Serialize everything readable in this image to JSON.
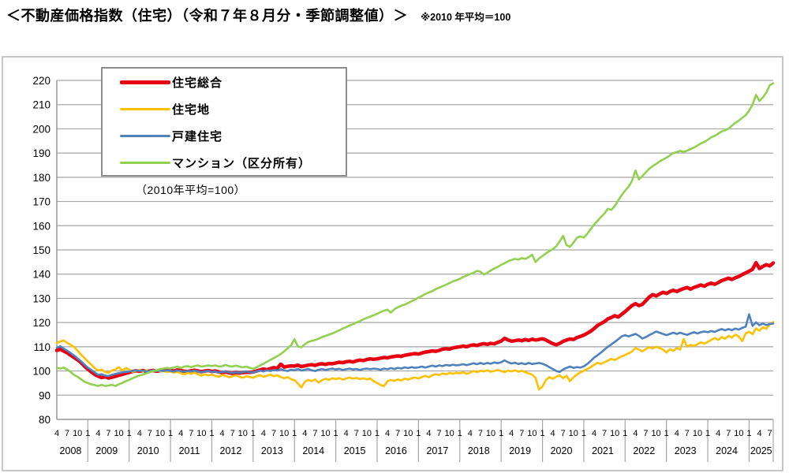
{
  "chart_data": {
    "type": "line",
    "title": "＜不動産価格指数（住宅）（令和７年８月分・季節調整値）＞",
    "subtitle": "※2010 年平均＝100",
    "inner_note": "（2010年平均=100）",
    "frequency": "monthly",
    "x_start": "2008-04",
    "x_end": "2025-08",
    "ylim": [
      80,
      220
    ],
    "y_step": 10,
    "grid": "horizontal-only",
    "legend_position": "top-left-inside",
    "quarter_tick_months": [
      1,
      4,
      7,
      10
    ],
    "colors": {
      "grid": "#a6a6a6",
      "axis": "#808080",
      "frame": "#b3b3b3",
      "text": "#000000"
    },
    "years": [
      "2008",
      "2009",
      "2010",
      "2011",
      "2012",
      "2013",
      "2014",
      "2015",
      "2016",
      "2017",
      "2018",
      "2019",
      "2020",
      "2021",
      "2022",
      "2023",
      "2024",
      "2025"
    ],
    "series": [
      {
        "key": "housing-total",
        "name": "住宅総合",
        "color": "#e60012",
        "line_width": 4.5,
        "values_by_year": {
          "2008": [
            108.5,
            109.0,
            108.2,
            107.5,
            106.5,
            105.6,
            104.6,
            103.5,
            102.0
          ],
          "2009": [
            100.8,
            99.6,
            98.6,
            97.8,
            97.3,
            97.6,
            97.1,
            97.4,
            97.8,
            98.2,
            98.6,
            99.0
          ],
          "2010": [
            99.4,
            99.8,
            100.1,
            99.9,
            100.2,
            99.8,
            100.0,
            100.2,
            99.9,
            100.1,
            100.3,
            100.4
          ],
          "2011": [
            100.2,
            100.0,
            100.4,
            100.2,
            99.9,
            99.8,
            100.1,
            100.3,
            100.0,
            99.7,
            100.0,
            100.2
          ],
          "2012": [
            99.8,
            100.0,
            99.6,
            99.3,
            99.6,
            99.2,
            99.0,
            99.4,
            99.1,
            99.3,
            99.5,
            99.4
          ],
          "2013": [
            99.6,
            100.0,
            100.4,
            100.8,
            100.5,
            101.0,
            101.4,
            101.1,
            102.8,
            101.6,
            101.9,
            102.1
          ],
          "2014": [
            102.0,
            102.4,
            101.8,
            102.1,
            102.4,
            102.6,
            102.3,
            102.8,
            103.0,
            102.7,
            103.1,
            103.0
          ],
          "2015": [
            103.3,
            103.6,
            103.4,
            103.8,
            104.0,
            103.7,
            104.2,
            104.5,
            104.3,
            104.7,
            105.0,
            104.8
          ],
          "2016": [
            105.0,
            105.3,
            105.6,
            105.4,
            105.8,
            106.0,
            106.2,
            106.0,
            106.5,
            106.7,
            107.0,
            107.2
          ],
          "2017": [
            107.0,
            107.4,
            107.8,
            108.0,
            108.3,
            108.1,
            108.5,
            109.0,
            109.2,
            109.0,
            109.5,
            109.8
          ],
          "2018": [
            110.0,
            110.3,
            110.0,
            110.5,
            110.8,
            110.5,
            111.0,
            111.3,
            111.0,
            111.4,
            111.2,
            111.8
          ],
          "2019": [
            112.3,
            113.5,
            112.8,
            112.3,
            112.5,
            112.8,
            112.5,
            113.0,
            112.6,
            113.1,
            112.8,
            113.0
          ],
          "2020": [
            113.3,
            112.8,
            112.0,
            111.3,
            110.8,
            111.4,
            112.2,
            112.8,
            113.2,
            113.0,
            113.8,
            114.3
          ],
          "2021": [
            114.8,
            115.6,
            116.4,
            117.5,
            118.8,
            119.6,
            120.4,
            121.5,
            122.1,
            122.8,
            122.3,
            123.4
          ],
          "2022": [
            124.5,
            125.8,
            127.0,
            127.8,
            127.0,
            127.5,
            129.0,
            130.5,
            131.5,
            131.0,
            131.8,
            132.5
          ],
          "2023": [
            132.0,
            132.8,
            133.3,
            132.8,
            133.5,
            134.0,
            134.5,
            133.8,
            134.5,
            135.0,
            135.5,
            135.0
          ],
          "2024": [
            135.8,
            136.3,
            135.8,
            136.5,
            137.3,
            137.8,
            138.3,
            137.8,
            138.5,
            139.0,
            139.8,
            140.5
          ],
          "2025": [
            141.2,
            142.0,
            144.7,
            142.3,
            143.2,
            143.9,
            143.4,
            144.6
          ]
        }
      },
      {
        "key": "residential-land",
        "name": "住宅地",
        "color": "#ffc000",
        "line_width": 2.6,
        "values_by_year": {
          "2008": [
            111.5,
            112.2,
            112.6,
            111.6,
            110.8,
            110.0,
            108.4,
            106.8,
            105.4
          ],
          "2009": [
            104.0,
            102.6,
            101.2,
            100.2,
            100.6,
            99.6,
            99.2,
            100.2,
            100.6,
            101.6,
            100.2,
            101.2
          ],
          "2010": [
            100.6,
            99.6,
            100.1,
            100.4,
            99.8,
            100.2,
            99.7,
            100.0,
            100.3,
            99.8,
            100.0,
            99.6
          ],
          "2011": [
            99.8,
            99.3,
            99.7,
            99.0,
            98.6,
            99.2,
            98.8,
            99.3,
            98.6,
            98.1,
            98.6,
            98.2
          ],
          "2012": [
            98.5,
            98.0,
            97.6,
            98.3,
            98.0,
            97.4,
            97.8,
            98.2,
            97.6,
            97.2,
            97.8,
            97.5
          ],
          "2013": [
            97.2,
            97.8,
            98.3,
            97.6,
            98.0,
            98.5,
            97.8,
            98.2,
            97.5,
            97.0,
            97.5,
            96.6
          ],
          "2014": [
            96.2,
            94.8,
            93.2,
            95.5,
            96.3,
            95.8,
            96.5,
            95.2,
            96.2,
            96.8,
            96.3,
            97.0
          ],
          "2015": [
            96.6,
            97.1,
            96.4,
            96.9,
            97.3,
            96.8,
            97.2,
            96.6,
            97.0,
            96.5,
            96.9,
            95.8
          ],
          "2016": [
            95.0,
            94.2,
            93.7,
            95.8,
            96.3,
            95.9,
            96.5,
            96.1,
            96.8,
            96.4,
            97.0,
            97.3
          ],
          "2017": [
            96.9,
            97.5,
            98.0,
            97.4,
            98.2,
            98.7,
            98.3,
            99.0,
            98.6,
            99.2,
            98.8,
            99.3
          ],
          "2018": [
            99.0,
            99.5,
            98.8,
            99.3,
            100.0,
            99.5,
            100.1,
            99.8,
            100.3,
            99.7,
            100.0,
            100.4
          ],
          "2019": [
            100.0,
            99.5,
            100.2,
            99.8,
            100.3,
            99.7,
            100.1,
            99.5,
            99.0,
            98.5,
            97.2,
            92.3
          ],
          "2020": [
            93.6,
            96.2,
            97.5,
            96.8,
            97.6,
            98.2,
            97.0,
            98.0,
            95.8,
            97.4,
            98.5,
            99.4
          ],
          "2021": [
            100.1,
            100.8,
            101.6,
            102.5,
            103.4,
            102.9,
            103.6,
            104.3,
            105.0,
            104.5,
            105.3,
            106.0
          ],
          "2022": [
            106.6,
            107.3,
            108.0,
            109.5,
            108.8,
            108.1,
            109.0,
            109.8,
            109.3,
            110.0,
            109.5,
            108.8
          ],
          "2023": [
            107.6,
            109.0,
            108.3,
            109.5,
            108.8,
            113.2,
            110.0,
            110.8,
            110.3,
            111.0,
            111.8,
            111.3
          ],
          "2024": [
            112.0,
            112.8,
            113.6,
            112.8,
            114.0,
            113.3,
            114.5,
            113.8,
            115.0,
            114.3,
            112.3,
            115.5
          ],
          "2025": [
            116.2,
            115.2,
            117.6,
            116.6,
            118.1,
            117.4,
            119.2,
            120.2
          ]
        }
      },
      {
        "key": "detached-house",
        "name": "戸建住宅",
        "color": "#4f81bd",
        "line_width": 2.6,
        "values_by_year": {
          "2008": [
            109.6,
            110.2,
            109.2,
            108.4,
            107.4,
            106.4,
            105.2,
            104.0,
            102.6
          ],
          "2009": [
            101.4,
            100.4,
            99.4,
            98.4,
            98.7,
            98.1,
            97.9,
            98.4,
            98.8,
            99.1,
            99.4,
            99.6
          ],
          "2010": [
            99.8,
            100.0,
            100.3,
            100.0,
            100.2,
            99.8,
            100.0,
            100.3,
            99.9,
            100.2,
            100.0,
            100.3
          ],
          "2011": [
            100.0,
            99.8,
            100.2,
            100.0,
            99.7,
            100.0,
            99.8,
            100.2,
            99.8,
            99.5,
            99.8,
            100.0
          ],
          "2012": [
            99.6,
            99.8,
            99.4,
            99.6,
            99.8,
            99.4,
            99.1,
            99.5,
            99.2,
            99.5,
            99.8,
            99.5
          ],
          "2013": [
            99.4,
            99.8,
            100.2,
            99.8,
            100.3,
            100.0,
            100.4,
            100.2,
            100.7,
            100.3,
            100.0,
            100.5
          ],
          "2014": [
            100.3,
            100.8,
            100.2,
            100.5,
            100.8,
            100.3,
            100.0,
            100.5,
            100.8,
            100.4,
            100.7,
            101.0
          ],
          "2015": [
            100.6,
            100.9,
            100.4,
            100.7,
            101.0,
            100.6,
            100.8,
            100.4,
            100.8,
            101.0,
            100.7,
            101.0
          ],
          "2016": [
            100.8,
            100.5,
            101.0,
            100.7,
            101.2,
            100.8,
            101.3,
            101.0,
            101.5,
            101.2,
            101.6,
            101.3
          ],
          "2017": [
            101.5,
            101.8,
            101.4,
            101.8,
            102.2,
            101.8,
            102.3,
            102.0,
            102.5,
            102.2,
            102.6,
            102.3
          ],
          "2018": [
            102.5,
            102.8,
            102.4,
            102.8,
            103.2,
            102.8,
            103.3,
            102.9,
            103.3,
            103.0,
            103.5,
            103.2
          ],
          "2019": [
            103.6,
            104.4,
            103.6,
            103.1,
            103.4,
            102.9,
            103.2,
            102.8,
            103.3,
            102.9,
            103.1,
            103.3
          ],
          "2020": [
            103.0,
            102.4,
            101.6,
            100.8,
            100.0,
            99.6,
            100.6,
            101.3,
            101.8,
            101.3,
            101.6,
            101.4
          ],
          "2021": [
            101.9,
            102.9,
            104.1,
            105.5,
            106.5,
            107.6,
            108.8,
            110.0,
            111.0,
            112.0,
            113.1,
            114.3
          ],
          "2022": [
            114.8,
            114.3,
            114.8,
            115.3,
            114.5,
            113.4,
            114.0,
            114.8,
            115.5,
            116.3,
            115.8,
            115.3
          ],
          "2023": [
            114.8,
            115.3,
            115.8,
            115.3,
            115.8,
            115.3,
            114.9,
            115.5,
            116.0,
            115.5,
            116.0,
            116.3
          ],
          "2024": [
            116.0,
            116.5,
            116.1,
            116.8,
            117.3,
            116.8,
            117.3,
            116.9,
            117.5,
            117.1,
            117.8,
            118.3
          ],
          "2025": [
            123.4,
            118.6,
            120.1,
            118.9,
            119.6,
            118.9,
            119.4,
            119.6
          ]
        }
      },
      {
        "key": "condominium",
        "name": "マンション（区分所有）",
        "color": "#92d050",
        "line_width": 2.6,
        "values_by_year": {
          "2008": [
            101.3,
            101.0,
            101.4,
            100.6,
            99.6,
            98.4,
            97.6,
            96.6,
            95.6
          ],
          "2009": [
            95.0,
            94.5,
            94.2,
            93.8,
            94.3,
            93.8,
            94.0,
            94.3,
            93.8,
            94.5,
            95.0,
            95.8
          ],
          "2010": [
            96.3,
            97.0,
            97.6,
            98.1,
            98.5,
            99.0,
            99.5,
            100.0,
            100.3,
            100.8,
            101.0,
            101.3
          ],
          "2011": [
            101.0,
            101.5,
            101.8,
            101.3,
            101.8,
            102.0,
            101.6,
            102.0,
            102.3,
            101.8,
            102.0,
            102.3
          ],
          "2012": [
            102.0,
            102.3,
            101.8,
            102.0,
            102.5,
            102.0,
            101.8,
            102.2,
            101.8,
            101.5,
            101.8,
            101.3
          ],
          "2013": [
            100.9,
            101.5,
            102.3,
            103.0,
            103.8,
            104.6,
            105.3,
            106.1,
            107.0,
            108.1,
            109.3,
            110.6
          ],
          "2014": [
            113.1,
            110.1,
            109.8,
            111.0,
            112.0,
            112.4,
            112.8,
            113.3,
            114.0,
            114.5,
            115.0,
            115.5
          ],
          "2015": [
            116.1,
            116.8,
            117.5,
            118.1,
            118.8,
            119.3,
            120.0,
            120.6,
            121.3,
            121.9,
            122.5,
            123.0
          ],
          "2016": [
            123.6,
            124.3,
            124.9,
            125.3,
            124.1,
            125.5,
            126.3,
            126.9,
            127.4,
            128.1,
            128.8,
            129.5
          ],
          "2017": [
            130.3,
            131.0,
            131.8,
            132.4,
            133.0,
            133.8,
            134.4,
            135.0,
            135.6,
            136.3,
            137.0,
            137.5
          ],
          "2018": [
            138.1,
            138.8,
            139.4,
            140.0,
            140.6,
            141.3,
            141.0,
            139.8,
            140.6,
            141.5,
            142.3,
            143.0
          ],
          "2019": [
            143.8,
            144.5,
            145.3,
            145.8,
            146.3,
            146.0,
            146.6,
            146.3,
            147.0,
            148.0,
            145.0,
            146.5
          ],
          "2020": [
            147.5,
            148.5,
            149.5,
            150.3,
            151.5,
            153.5,
            155.8,
            152.0,
            151.3,
            153.0,
            155.0,
            155.6
          ],
          "2021": [
            155.1,
            156.6,
            158.5,
            160.5,
            162.0,
            163.6,
            165.0,
            167.0,
            166.5,
            168.1,
            170.5,
            172.6
          ],
          "2022": [
            174.5,
            176.1,
            178.5,
            182.8,
            179.1,
            180.5,
            182.0,
            183.5,
            184.6,
            185.5,
            186.5,
            187.3
          ],
          "2023": [
            188.1,
            189.0,
            190.0,
            190.4,
            190.9,
            190.5,
            191.0,
            191.6,
            192.3,
            193.1,
            194.0,
            194.6
          ],
          "2024": [
            195.5,
            196.5,
            197.1,
            198.0,
            198.9,
            199.4,
            200.1,
            201.3,
            202.5,
            203.4,
            204.5,
            205.6
          ],
          "2025": [
            207.5,
            210.0,
            214.0,
            211.5,
            213.0,
            215.0,
            218.0,
            218.8
          ]
        }
      }
    ]
  }
}
